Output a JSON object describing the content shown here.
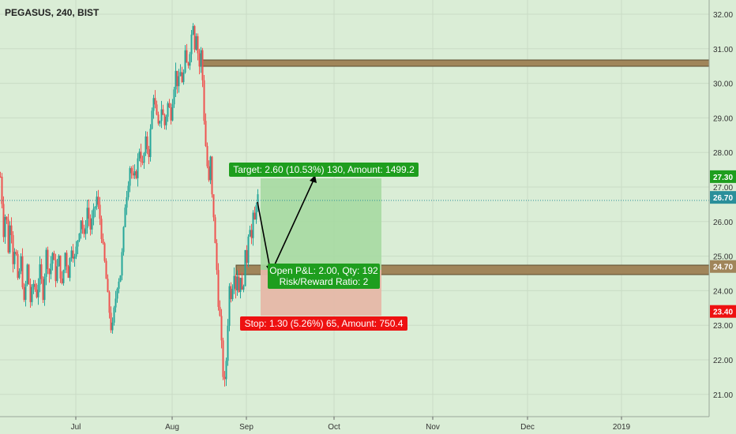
{
  "header": {
    "symbol": "PEGASUS, 240, BIST"
  },
  "colors": {
    "background": "#daedd6",
    "up": "#26a69a",
    "down": "#ef5350",
    "zone": "#a0855a",
    "target_fill": "#a6d9a2",
    "stop_fill": "#e6b8a8",
    "label_green": "#1e9e1e",
    "label_red": "#ee1111",
    "last_price": "#2a8f9a"
  },
  "price_axis": {
    "ticks": [
      "32.00",
      "31.00",
      "30.00",
      "29.00",
      "28.00",
      "27.00",
      "26.00",
      "25.00",
      "24.00",
      "23.00",
      "22.00",
      "21.00"
    ]
  },
  "price_badges": [
    {
      "value": "27.30",
      "color": "#1e9e1e"
    },
    {
      "value": "26.70",
      "color": "#2a8f9a"
    },
    {
      "value": "24.70",
      "color": "#a0855a"
    },
    {
      "value": "23.40",
      "color": "#ee1111"
    }
  ],
  "time_axis": {
    "labels": [
      "Jul",
      "Aug",
      "Sep",
      "Oct",
      "Nov",
      "Dec",
      "2019"
    ]
  },
  "position_tool": {
    "target_label": "Target: 2.60 (10.53%) 130, Amount: 1499.2",
    "open_pl_label": "Open P&L: 2.00, Qty: 192",
    "ratio_label": "Risk/Reward Ratio: 2",
    "stop_label": "Stop: 1.30 (5.26%) 65, Amount: 750.4"
  },
  "chart_data": {
    "type": "candlestick",
    "symbol": "PEGASUS",
    "interval": "240",
    "exchange": "BIST",
    "y_range": [
      20.75,
      32.25
    ],
    "last_price": 26.7,
    "resistance_zone": [
      30.55,
      30.7
    ],
    "support_zone": [
      24.55,
      24.85
    ],
    "entry": 24.7,
    "target": 27.3,
    "stop": 23.4,
    "swing_path": [
      26.7,
      24.7,
      27.3
    ],
    "price_path": [
      [
        0,
        27.3
      ],
      [
        2,
        26.6
      ],
      [
        4,
        25.7
      ],
      [
        7,
        26.4
      ],
      [
        10,
        25.2
      ],
      [
        13,
        26.2
      ],
      [
        16,
        24.9
      ],
      [
        19,
        25.4
      ],
      [
        22,
        24.2
      ],
      [
        26,
        24.9
      ],
      [
        30,
        23.6
      ],
      [
        34,
        24.7
      ],
      [
        38,
        23.7
      ],
      [
        42,
        24.2
      ],
      [
        46,
        23.9
      ],
      [
        50,
        24.6
      ],
      [
        54,
        23.9
      ],
      [
        58,
        25.1
      ],
      [
        62,
        24.5
      ],
      [
        66,
        25.1
      ],
      [
        70,
        24.4
      ],
      [
        74,
        24.9
      ],
      [
        78,
        24.1
      ],
      [
        82,
        25.1
      ],
      [
        86,
        24.5
      ],
      [
        90,
        25.3
      ],
      [
        94,
        24.9
      ],
      [
        98,
        25.5
      ],
      [
        102,
        26.1
      ],
      [
        106,
        25.5
      ],
      [
        110,
        26.4
      ],
      [
        114,
        25.8
      ],
      [
        118,
        26.2
      ],
      [
        122,
        26.7
      ],
      [
        126,
        26.1
      ],
      [
        130,
        25.2
      ],
      [
        133,
        24.6
      ],
      [
        136,
        23.8
      ],
      [
        139,
        23.2
      ],
      [
        141,
        22.7
      ],
      [
        144,
        23.4
      ],
      [
        148,
        24.2
      ],
      [
        152,
        24.5
      ],
      [
        155,
        25.3
      ],
      [
        158,
        26.5
      ],
      [
        161,
        27.0
      ],
      [
        164,
        27.6
      ],
      [
        168,
        27.2
      ],
      [
        172,
        27.4
      ],
      [
        176,
        28.1
      ],
      [
        180,
        27.6
      ],
      [
        184,
        28.3
      ],
      [
        188,
        28.0
      ],
      [
        191,
        28.9
      ],
      [
        194,
        29.7
      ],
      [
        197,
        29.1
      ],
      [
        200,
        28.7
      ],
      [
        204,
        29.3
      ],
      [
        208,
        28.8
      ],
      [
        212,
        29.4
      ],
      [
        216,
        29.1
      ],
      [
        219,
        29.8
      ],
      [
        222,
        30.3
      ],
      [
        225,
        29.9
      ],
      [
        228,
        30.3
      ],
      [
        231,
        30.0
      ],
      [
        234,
        30.8
      ],
      [
        237,
        30.4
      ],
      [
        240,
        31.0
      ],
      [
        242,
        31.4
      ],
      [
        244,
        31.8
      ],
      [
        246,
        31.1
      ],
      [
        248,
        31.5
      ],
      [
        250,
        30.9
      ],
      [
        252,
        30.5
      ],
      [
        254,
        30.9
      ],
      [
        256,
        30.1
      ],
      [
        258,
        29.0
      ],
      [
        260,
        28.2
      ],
      [
        262,
        27.6
      ],
      [
        264,
        27.1
      ],
      [
        266,
        27.8
      ],
      [
        268,
        26.7
      ],
      [
        270,
        26.2
      ],
      [
        272,
        25.3
      ],
      [
        274,
        24.6
      ],
      [
        276,
        23.7
      ],
      [
        278,
        23.2
      ],
      [
        280,
        22.4
      ],
      [
        282,
        21.6
      ],
      [
        284,
        21.3
      ],
      [
        286,
        22.0
      ],
      [
        288,
        23.1
      ],
      [
        290,
        24.1
      ],
      [
        292,
        23.9
      ],
      [
        294,
        24.2
      ],
      [
        296,
        24.6
      ],
      [
        298,
        24.1
      ],
      [
        300,
        24.5
      ],
      [
        302,
        24.0
      ],
      [
        304,
        24.5
      ],
      [
        306,
        23.9
      ],
      [
        308,
        24.3
      ],
      [
        310,
        25.0
      ],
      [
        312,
        24.9
      ],
      [
        314,
        25.7
      ],
      [
        316,
        25.9
      ],
      [
        318,
        25.5
      ],
      [
        320,
        26.1
      ],
      [
        322,
        26.0
      ],
      [
        324,
        26.6
      ],
      [
        326,
        26.7
      ]
    ]
  }
}
